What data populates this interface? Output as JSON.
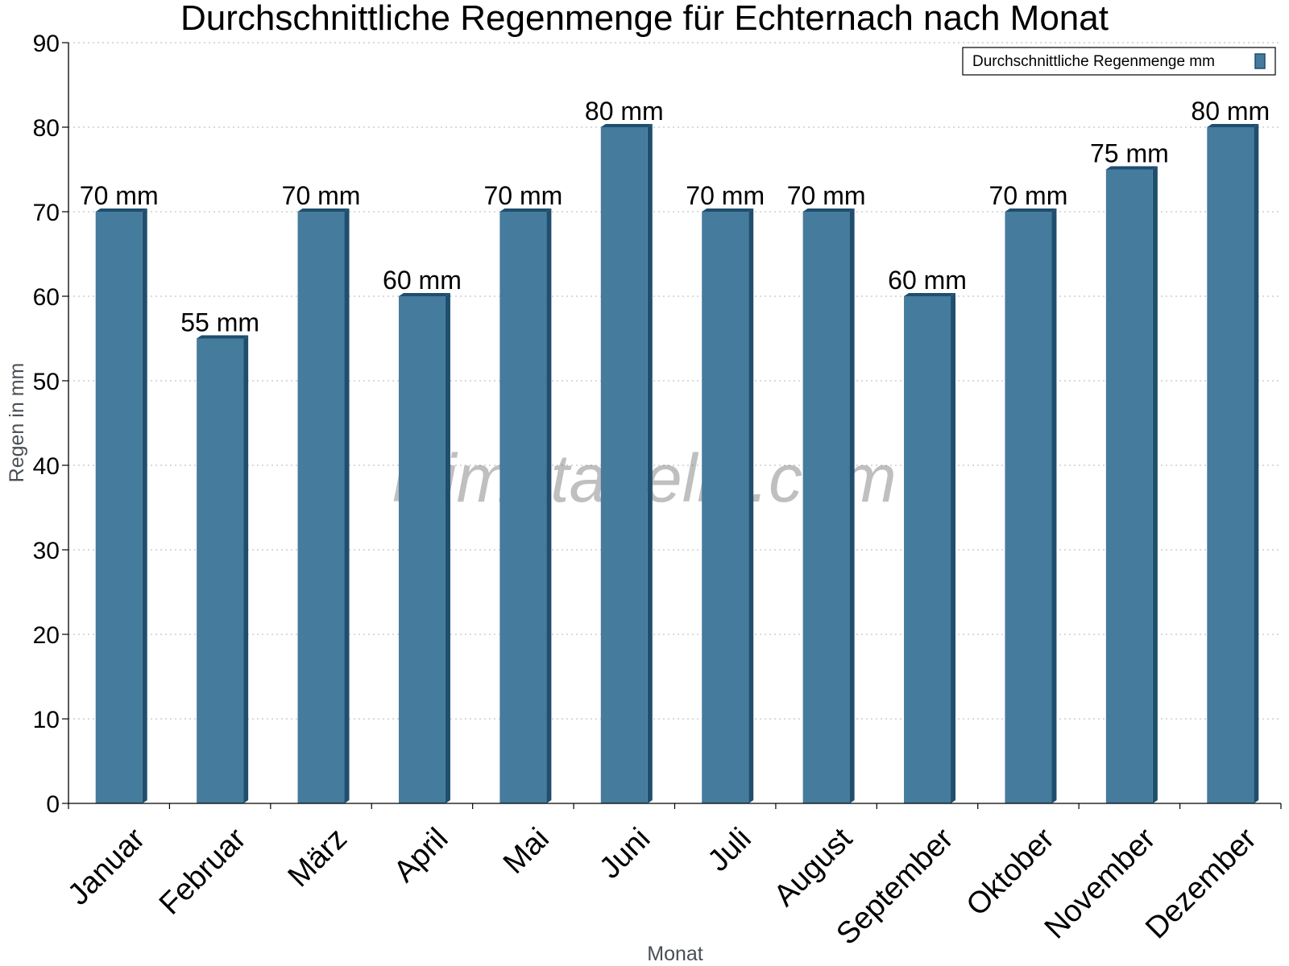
{
  "chart_data": {
    "type": "bar",
    "title": "Durchschnittliche Regenmenge für Echternach nach Monat",
    "xlabel": "Monat",
    "ylabel": "Regen in mm",
    "ylim": [
      0,
      90
    ],
    "yticks": [
      0,
      10,
      20,
      30,
      40,
      50,
      60,
      70,
      80,
      90
    ],
    "grid": true,
    "legend_position": "top-right",
    "categories": [
      "Januar",
      "Februar",
      "März",
      "April",
      "Mai",
      "Juni",
      "Juli",
      "August",
      "September",
      "Oktober",
      "November",
      "Dezember"
    ],
    "series": [
      {
        "name": "Durchschnittliche Regenmenge mm",
        "values": [
          70,
          55,
          70,
          60,
          70,
          80,
          70,
          70,
          60,
          70,
          75,
          80
        ],
        "data_labels": [
          "70 mm",
          "55 mm",
          "70 mm",
          "60 mm",
          "70 mm",
          "80 mm",
          "70 mm",
          "70 mm",
          "60 mm",
          "70 mm",
          "75 mm",
          "80 mm"
        ],
        "color": "#457b9d",
        "side_color": "#1f4e6e"
      }
    ],
    "watermark": "klimatabelle.com"
  }
}
